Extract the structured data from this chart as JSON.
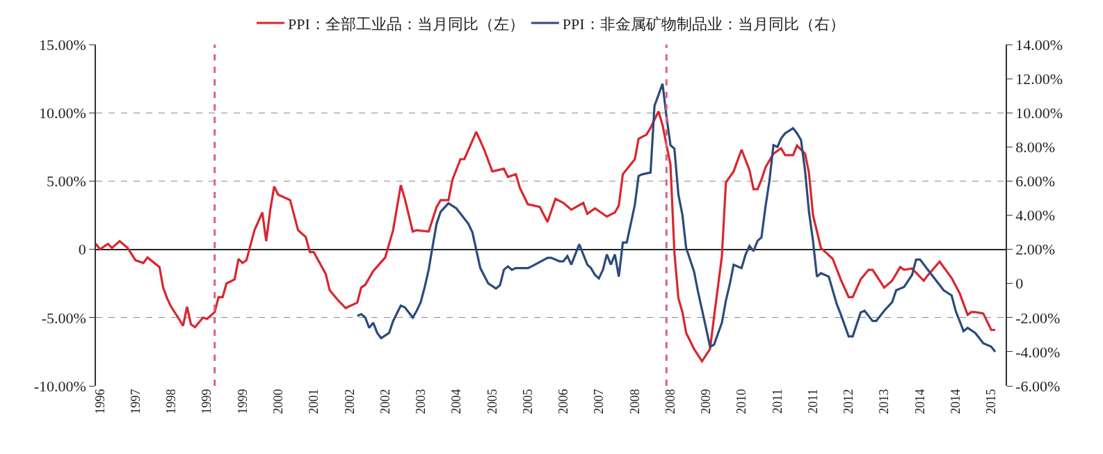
{
  "chart_data": {
    "type": "line",
    "xlim": [
      "1996-10",
      "2015-11-20"
    ],
    "xticks": [
      {
        "value": "1996-11",
        "label": "1996"
      },
      {
        "value": "1997-08",
        "label": "1997"
      },
      {
        "value": "1998-05",
        "label": "1998"
      },
      {
        "value": "1999-02",
        "label": "1999"
      },
      {
        "value": "1999-11",
        "label": "1999"
      },
      {
        "value": "2000-08",
        "label": "2000"
      },
      {
        "value": "2001-05",
        "label": "2001"
      },
      {
        "value": "2002-02",
        "label": "2002"
      },
      {
        "value": "2002-11",
        "label": "2002"
      },
      {
        "value": "2003-08",
        "label": "2003"
      },
      {
        "value": "2004-05",
        "label": "2004"
      },
      {
        "value": "2005-02",
        "label": "2005"
      },
      {
        "value": "2005-11",
        "label": "2005"
      },
      {
        "value": "2006-08",
        "label": "2006"
      },
      {
        "value": "2007-05",
        "label": "2007"
      },
      {
        "value": "2008-02",
        "label": "2008"
      },
      {
        "value": "2008-11",
        "label": "2008"
      },
      {
        "value": "2009-08",
        "label": "2009"
      },
      {
        "value": "2010-05",
        "label": "2010"
      },
      {
        "value": "2011-02",
        "label": "2011"
      },
      {
        "value": "2011-11",
        "label": "2011"
      },
      {
        "value": "2012-08",
        "label": "2012"
      },
      {
        "value": "2013-05",
        "label": "2013"
      },
      {
        "value": "2014-02",
        "label": "2014"
      },
      {
        "value": "2014-11",
        "label": "2014"
      },
      {
        "value": "2015-08",
        "label": "2015"
      }
    ],
    "ylim": [
      -10,
      15
    ],
    "yticks": [
      {
        "value": -10,
        "label": "-10.00%"
      },
      {
        "value": -5,
        "label": "-5.00%"
      },
      {
        "value": 0,
        "label": "0"
      },
      {
        "value": 5,
        "label": "5.00%"
      },
      {
        "value": 10,
        "label": "10.00%"
      },
      {
        "value": 15,
        "label": "15.00%"
      }
    ],
    "y2lim": [
      -6,
      14
    ],
    "y2ticks": [
      {
        "value": -6,
        "label": "-6.00%"
      },
      {
        "value": -4,
        "label": "-4.00%"
      },
      {
        "value": -2,
        "label": "-2.00%"
      },
      {
        "value": 0,
        "label": "0"
      },
      {
        "value": 2,
        "label": "2.00%"
      },
      {
        "value": 4,
        "label": "4.00%"
      },
      {
        "value": 6,
        "label": "6.00%"
      },
      {
        "value": 8,
        "label": "8.00%"
      },
      {
        "value": 10,
        "label": "10.00%"
      },
      {
        "value": 12,
        "label": "12.00%"
      },
      {
        "value": 14,
        "label": "14.00%"
      }
    ],
    "grid": "y",
    "legend": "top",
    "marker": "none",
    "line_style": "solid",
    "ref_lines": [
      {
        "axis": "x",
        "value": "1999-04",
        "color": "#e0607e",
        "line_style": "dashed"
      },
      {
        "axis": "x",
        "value": "2008-10",
        "color": "#e0607e",
        "line_style": "dashed"
      }
    ],
    "series": [
      {
        "name": "PPI：全部工业品：当月同比（左）",
        "color": "#d9262e",
        "axis": "y",
        "x": [
          "1996-10",
          "1996-11",
          "1997-01",
          "1997-02",
          "1997-04",
          "1997-06",
          "1997-08",
          "1997-10",
          "1997-11",
          "1998-02",
          "1998-03",
          "1998-04",
          "1998-05",
          "1998-07",
          "1998-08",
          "1998-09",
          "1998-10",
          "1998-11",
          "1999-01",
          "1999-02",
          "1999-04",
          "1999-05",
          "1999-06",
          "1999-07",
          "1999-09",
          "1999-10",
          "1999-11",
          "1999-12",
          "2000-02",
          "2000-04",
          "2000-05",
          "2000-06",
          "2000-07",
          "2000-08",
          "2000-11",
          "2001-01",
          "2001-03",
          "2001-04",
          "2001-05",
          "2001-08",
          "2001-09",
          "2001-11",
          "2002-01",
          "2002-04",
          "2002-05",
          "2002-06",
          "2002-08",
          "2002-11",
          "2003-01",
          "2003-03",
          "2003-04",
          "2003-06",
          "2003-07",
          "2003-10",
          "2003-12",
          "2004-01",
          "2004-03",
          "2004-04",
          "2004-06",
          "2004-07",
          "2004-10",
          "2004-12",
          "2005-02",
          "2005-05",
          "2005-06",
          "2005-08",
          "2005-09",
          "2005-11",
          "2006-02",
          "2006-04",
          "2006-06",
          "2006-08",
          "2006-10",
          "2007-01",
          "2007-02",
          "2007-04",
          "2007-07",
          "2007-09",
          "2007-10",
          "2007-11",
          "2008-02",
          "2008-03",
          "2008-05",
          "2008-06",
          "2008-08",
          "2008-09",
          "2008-11",
          "2008-12",
          "2009-01",
          "2009-02",
          "2009-03",
          "2009-05",
          "2009-07",
          "2009-09",
          "2009-10",
          "2009-12",
          "2010-01",
          "2010-03",
          "2010-05",
          "2010-07",
          "2010-08",
          "2010-09",
          "2010-10",
          "2010-11",
          "2011-01",
          "2011-03",
          "2011-04",
          "2011-06",
          "2011-07",
          "2011-09",
          "2011-10",
          "2011-11",
          "2012-01",
          "2012-04",
          "2012-06",
          "2012-08",
          "2012-09",
          "2012-11",
          "2013-01",
          "2013-02",
          "2013-05",
          "2013-07",
          "2013-09",
          "2013-10",
          "2013-12",
          "2014-03",
          "2014-04",
          "2014-07",
          "2014-10",
          "2014-12",
          "2015-02",
          "2015-03",
          "2015-04",
          "2015-06",
          "2015-08",
          "2015-09"
        ],
        "values": [
          0.4,
          0.0,
          0.4,
          0.1,
          0.6,
          0.1,
          -0.8,
          -1.0,
          -0.6,
          -1.3,
          -2.8,
          -3.6,
          -4.2,
          -5.1,
          -5.6,
          -4.2,
          -5.5,
          -5.7,
          -5.0,
          -5.1,
          -4.6,
          -3.5,
          -3.5,
          -2.5,
          -2.2,
          -0.7,
          -1.0,
          -0.8,
          1.4,
          2.7,
          0.6,
          2.9,
          4.6,
          4.0,
          3.6,
          1.4,
          0.9,
          -0.2,
          -0.2,
          -1.8,
          -3.0,
          -3.7,
          -4.3,
          -3.9,
          -2.8,
          -2.6,
          -1.6,
          -0.6,
          1.4,
          4.7,
          3.7,
          1.3,
          1.4,
          1.3,
          3.1,
          3.6,
          3.6,
          5.1,
          6.6,
          6.6,
          8.6,
          7.3,
          5.7,
          5.9,
          5.3,
          5.5,
          4.5,
          3.3,
          3.1,
          2.0,
          3.7,
          3.4,
          2.9,
          3.4,
          2.6,
          3.0,
          2.4,
          2.7,
          3.2,
          5.5,
          6.6,
          8.1,
          8.4,
          8.9,
          10.1,
          9.1,
          6.2,
          -0.2,
          -3.6,
          -4.6,
          -6.1,
          -7.3,
          -8.2,
          -7.3,
          -5.0,
          -0.5,
          4.9,
          5.7,
          7.3,
          5.8,
          4.4,
          4.4,
          5.1,
          6.0,
          7.0,
          7.4,
          6.9,
          6.9,
          7.6,
          7.0,
          5.6,
          2.5,
          0.1,
          -0.7,
          -2.2,
          -3.5,
          -3.5,
          -2.2,
          -1.5,
          -1.5,
          -2.8,
          -2.3,
          -1.3,
          -1.5,
          -1.4,
          -2.3,
          -1.9,
          -0.9,
          -2.1,
          -3.2,
          -4.8,
          -4.6,
          -4.6,
          -4.7,
          -5.9,
          -5.9
        ]
      },
      {
        "name": "PPI：非金属矿物制品业：当月同比（右）",
        "color": "#2b4a7c",
        "axis": "y2",
        "x": [
          "2002-04",
          "2002-05",
          "2002-06",
          "2002-07",
          "2002-08",
          "2002-09",
          "2002-10",
          "2002-12",
          "2003-01",
          "2003-03",
          "2003-04",
          "2003-06",
          "2003-07",
          "2003-08",
          "2003-09",
          "2003-10",
          "2003-11",
          "2003-12",
          "2004-01",
          "2004-03",
          "2004-05",
          "2004-08",
          "2004-09",
          "2004-11",
          "2005-01",
          "2005-03",
          "2005-04",
          "2005-05",
          "2005-06",
          "2005-07",
          "2005-08",
          "2005-11",
          "2005-12",
          "2006-04",
          "2006-05",
          "2006-07",
          "2006-08",
          "2006-09",
          "2006-10",
          "2006-12",
          "2007-02",
          "2007-03",
          "2007-04",
          "2007-05",
          "2007-06",
          "2007-07",
          "2007-08",
          "2007-09",
          "2007-10",
          "2007-11",
          "2007-12",
          "2008-02",
          "2008-03",
          "2008-04",
          "2008-06",
          "2008-07",
          "2008-09",
          "2008-10",
          "2008-11",
          "2008-12",
          "2009-01",
          "2009-02",
          "2009-03",
          "2009-05",
          "2009-06",
          "2009-08",
          "2009-09",
          "2009-10",
          "2009-12",
          "2010-01",
          "2010-02",
          "2010-03",
          "2010-05",
          "2010-06",
          "2010-07",
          "2010-08",
          "2010-09",
          "2010-10",
          "2010-11",
          "2010-12",
          "2011-01",
          "2011-02",
          "2011-03",
          "2011-04",
          "2011-06",
          "2011-07",
          "2011-08",
          "2011-09",
          "2011-10",
          "2011-11",
          "2011-12",
          "2012-01",
          "2012-03",
          "2012-05",
          "2012-06",
          "2012-08",
          "2012-09",
          "2012-11",
          "2012-12",
          "2013-02",
          "2013-03",
          "2013-05",
          "2013-07",
          "2013-08",
          "2013-10",
          "2013-12",
          "2014-01",
          "2014-02",
          "2014-04",
          "2014-06",
          "2014-08",
          "2014-10",
          "2014-11",
          "2015-01",
          "2015-02",
          "2015-04",
          "2015-06",
          "2015-08",
          "2015-09"
        ],
        "values": [
          -1.9,
          -1.8,
          -2.0,
          -2.6,
          -2.3,
          -2.9,
          -3.2,
          -2.9,
          -2.2,
          -1.3,
          -1.4,
          -2.0,
          -1.6,
          -1.1,
          -0.2,
          0.8,
          2.2,
          3.5,
          4.2,
          4.7,
          4.4,
          3.5,
          3.0,
          0.9,
          0.0,
          -0.3,
          -0.1,
          0.8,
          1.0,
          0.8,
          0.9,
          0.9,
          1.0,
          1.5,
          1.5,
          1.3,
          1.3,
          1.6,
          1.1,
          2.3,
          1.1,
          0.9,
          0.5,
          0.3,
          0.8,
          1.7,
          1.1,
          1.7,
          0.4,
          2.4,
          2.4,
          4.6,
          6.3,
          6.4,
          6.5,
          10.4,
          11.7,
          9.8,
          8.1,
          7.9,
          5.2,
          4.0,
          2.1,
          0.7,
          -0.5,
          -2.6,
          -3.7,
          -3.6,
          -2.3,
          -1.0,
          0.0,
          1.1,
          0.9,
          1.7,
          2.2,
          1.9,
          2.5,
          2.7,
          4.5,
          6.0,
          8.1,
          8.0,
          8.5,
          8.8,
          9.1,
          8.8,
          8.4,
          6.6,
          4.2,
          2.5,
          0.4,
          0.6,
          0.4,
          -1.2,
          -1.8,
          -3.1,
          -3.1,
          -1.7,
          -1.6,
          -2.2,
          -2.2,
          -1.6,
          -1.1,
          -0.4,
          -0.2,
          0.5,
          1.4,
          1.4,
          0.8,
          0.2,
          -0.4,
          -0.7,
          -1.6,
          -2.8,
          -2.6,
          -2.9,
          -3.5,
          -3.7,
          -4.0
        ]
      }
    ]
  }
}
